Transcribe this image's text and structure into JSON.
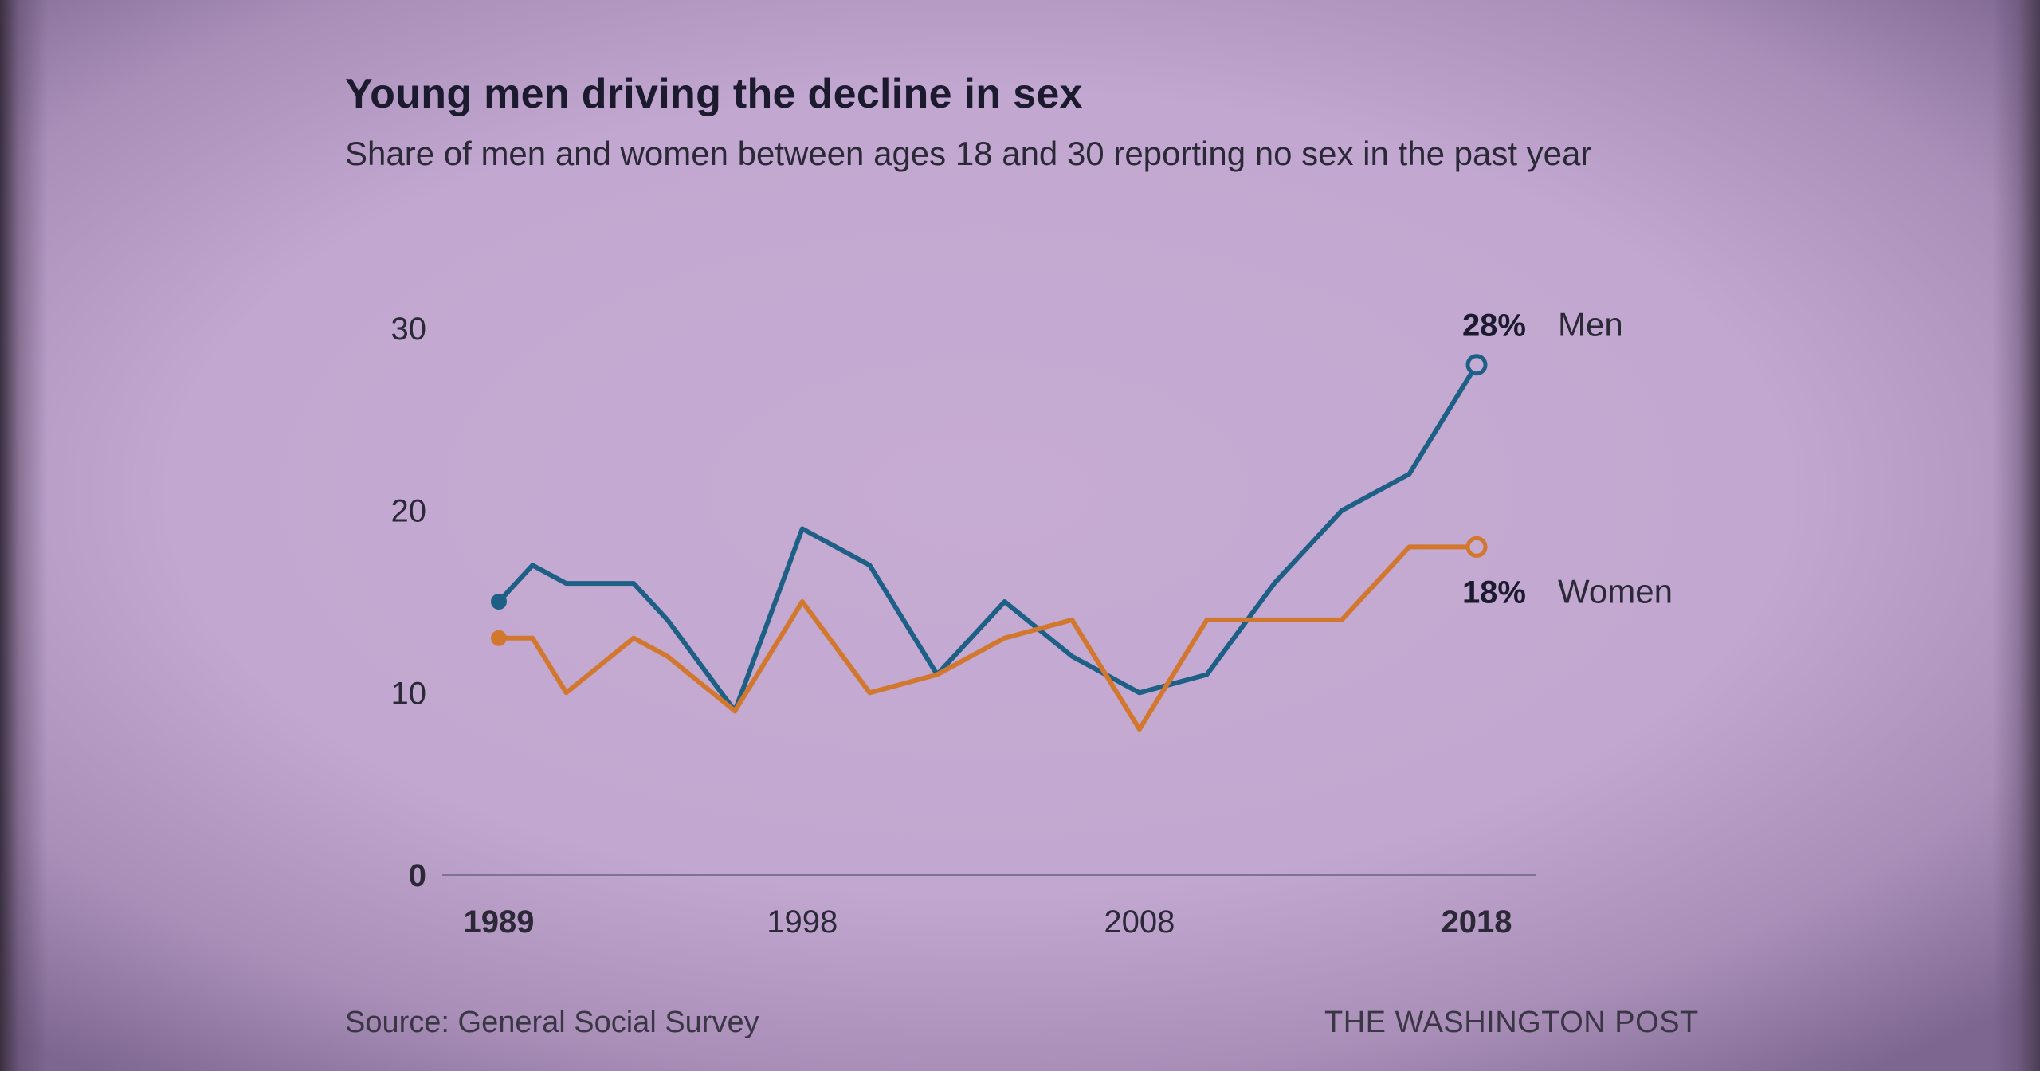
{
  "header": {
    "title": "Young men driving the decline in sex",
    "subtitle": "Share of men and women between ages 18 and 30 reporting no sex in the past year"
  },
  "footer": {
    "source": "Source: General Social Survey",
    "brand": "THE WASHINGTON POST"
  },
  "colors": {
    "men": "#1e5f86",
    "women": "#d2782e",
    "axis_text": "#2b2838",
    "label_text": "#1c1a2e",
    "baseline": "#7f7390"
  },
  "chart_data": {
    "type": "line",
    "title": "Young men driving the decline in sex",
    "subtitle": "Share of men and women between ages 18 and 30 reporting no sex in the past year",
    "xlabel": "",
    "ylabel": "",
    "xlim": [
      1989,
      2018
    ],
    "ylim": [
      0,
      30
    ],
    "yticks": [
      0,
      10,
      20,
      30
    ],
    "xticks": [
      {
        "value": 1989,
        "label": "1989",
        "bold": true
      },
      {
        "value": 1998,
        "label": "1998",
        "bold": false
      },
      {
        "value": 2008,
        "label": "2008",
        "bold": false
      },
      {
        "value": 2018,
        "label": "2018",
        "bold": true
      }
    ],
    "grid": false,
    "series": [
      {
        "name": "Men",
        "color": "#1e5f86",
        "end_label": "28%",
        "x": [
          1989,
          1990,
          1991,
          1993,
          1994,
          1996,
          1998,
          2000,
          2002,
          2004,
          2006,
          2008,
          2010,
          2012,
          2014,
          2016,
          2018
        ],
        "values": [
          15,
          17,
          16,
          16,
          14,
          9,
          19,
          17,
          11,
          15,
          12,
          10,
          11,
          16,
          20,
          22,
          28
        ]
      },
      {
        "name": "Women",
        "color": "#d2782e",
        "end_label": "18%",
        "x": [
          1989,
          1990,
          1991,
          1993,
          1994,
          1996,
          1998,
          2000,
          2002,
          2004,
          2006,
          2008,
          2010,
          2012,
          2014,
          2016,
          2018
        ],
        "values": [
          13,
          13,
          10,
          13,
          12,
          9,
          15,
          10,
          11,
          13,
          14,
          8,
          14,
          14,
          14,
          18,
          18
        ]
      }
    ]
  }
}
